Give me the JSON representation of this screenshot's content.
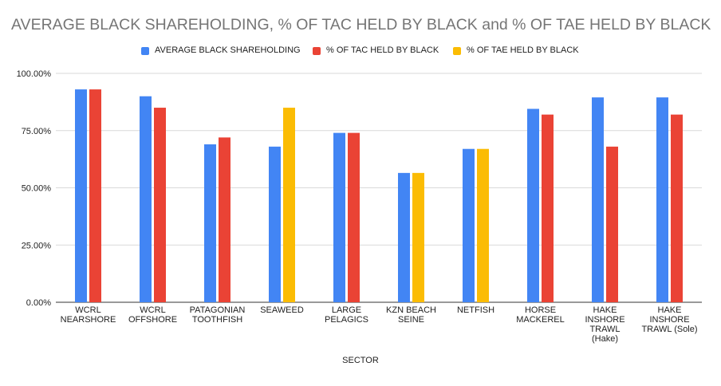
{
  "chart_data": {
    "type": "bar",
    "title": "AVERAGE BLACK SHAREHOLDING, % OF TAC HELD BY BLACK and % OF TAE HELD BY BLACK",
    "xlabel": "SECTOR",
    "ylabel": "",
    "ylim": [
      0,
      1
    ],
    "yticks": [
      "0.00%",
      "25.00%",
      "50.00%",
      "75.00%",
      "100.00%"
    ],
    "grid": true,
    "legend_position": "top",
    "categories": [
      [
        "WCRL",
        "NEARSHORE"
      ],
      [
        "WCRL",
        "OFFSHORE"
      ],
      [
        "PATAGONIAN",
        "TOOTHFISH"
      ],
      [
        "SEAWEED"
      ],
      [
        "LARGE",
        "PELAGICS"
      ],
      [
        "KZN BEACH",
        "SEINE"
      ],
      [
        "NETFISH"
      ],
      [
        "HORSE",
        "MACKEREL"
      ],
      [
        "HAKE",
        "INSHORE",
        "TRAWL",
        "(Hake)"
      ],
      [
        "HAKE",
        "INSHORE",
        "TRAWL (Sole)"
      ]
    ],
    "series": [
      {
        "name": "AVERAGE BLACK SHAREHOLDING",
        "color": "#4285f4",
        "values": [
          0.93,
          0.9,
          0.69,
          0.68,
          0.74,
          0.565,
          0.67,
          0.845,
          0.895,
          0.895
        ]
      },
      {
        "name": "% OF TAC HELD BY BLACK",
        "color": "#ea4335",
        "values": [
          0.93,
          0.85,
          0.72,
          null,
          0.74,
          null,
          null,
          0.82,
          0.68,
          0.82
        ]
      },
      {
        "name": "% OF TAE HELD BY BLACK",
        "color": "#fbbc04",
        "values": [
          null,
          null,
          null,
          0.85,
          null,
          0.565,
          0.67,
          null,
          null,
          null
        ]
      }
    ]
  }
}
